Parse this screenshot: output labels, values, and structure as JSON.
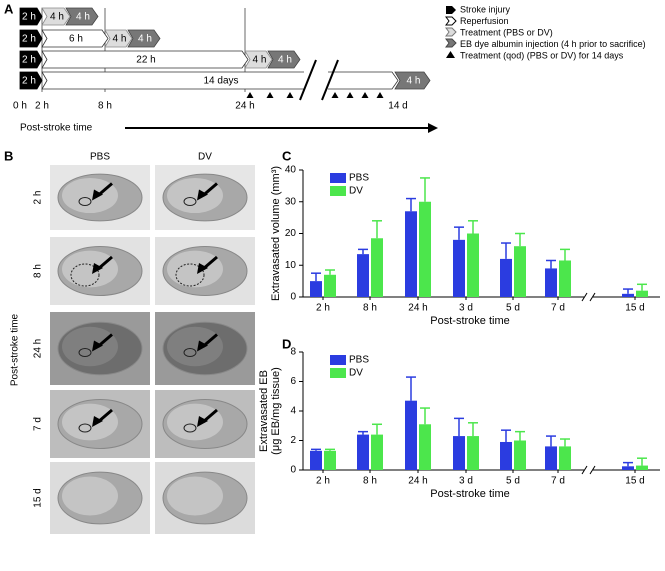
{
  "panel_a": {
    "label": "A",
    "rows": [
      [
        "2 h",
        "4 h",
        "4 h"
      ],
      [
        "2 h",
        "6 h",
        "4 h",
        "4 h"
      ],
      [
        "2 h",
        "22 h",
        "4 h",
        "4 h"
      ],
      [
        "2 h",
        "14 days",
        "4 h"
      ]
    ],
    "time_labels": [
      "0 h",
      "2 h",
      "8 h",
      "24 h",
      "14 d"
    ],
    "axis_label": "Post-stroke time",
    "legend": [
      "Stroke injury",
      "Reperfusion",
      "Treatment (PBS or DV)",
      "EB dye albumin injection (4 h prior to sacrifice)",
      "Treatment (qod) (PBS or DV) for 14 days"
    ]
  },
  "panel_b": {
    "label": "B",
    "columns": [
      "PBS",
      "DV"
    ],
    "rows": [
      "2 h",
      "8 h",
      "24 h",
      "7 d",
      "15 d"
    ],
    "axis_label": "Post-stroke time"
  },
  "chart_data": [
    {
      "type": "bar",
      "panel": "C",
      "categories": [
        "2 h",
        "8 h",
        "24 h",
        "3 d",
        "5 d",
        "7 d",
        "15 d"
      ],
      "series": [
        {
          "name": "PBS",
          "color": "#2b3ce0",
          "values": [
            5,
            13.5,
            27,
            18,
            12,
            9,
            1
          ],
          "errors": [
            2.5,
            1.5,
            4,
            4,
            5,
            2.5,
            1.5
          ]
        },
        {
          "name": "DV",
          "color": "#4ce64c",
          "values": [
            7,
            18.5,
            30,
            20,
            16,
            11.5,
            2
          ],
          "errors": [
            1.5,
            5.5,
            7.5,
            4,
            4,
            3.5,
            2
          ]
        }
      ],
      "ylim": [
        0,
        40
      ],
      "yticks": [
        0,
        10,
        20,
        30,
        40
      ],
      "ylabel": [
        "Extravasated volume (mm³)"
      ],
      "xlabel": "Post-stroke time"
    },
    {
      "type": "bar",
      "panel": "D",
      "categories": [
        "2 h",
        "8 h",
        "24 h",
        "3 d",
        "5 d",
        "7 d",
        "15 d"
      ],
      "series": [
        {
          "name": "PBS",
          "color": "#2b3ce0",
          "values": [
            1.3,
            2.4,
            4.7,
            2.3,
            1.9,
            1.6,
            0.25
          ],
          "errors": [
            0.1,
            0.2,
            1.6,
            1.2,
            0.8,
            0.7,
            0.25
          ]
        },
        {
          "name": "DV",
          "color": "#4ce64c",
          "values": [
            1.3,
            2.4,
            3.1,
            2.3,
            2.0,
            1.6,
            0.3
          ],
          "errors": [
            0.1,
            0.7,
            1.1,
            0.9,
            0.6,
            0.5,
            0.5
          ]
        }
      ],
      "ylim": [
        0,
        8
      ],
      "yticks": [
        0,
        2,
        4,
        6,
        8
      ],
      "ylabel": [
        "Extravasated EB",
        "(μg EB/mg tissue)"
      ],
      "xlabel": "Post-stroke time"
    }
  ]
}
